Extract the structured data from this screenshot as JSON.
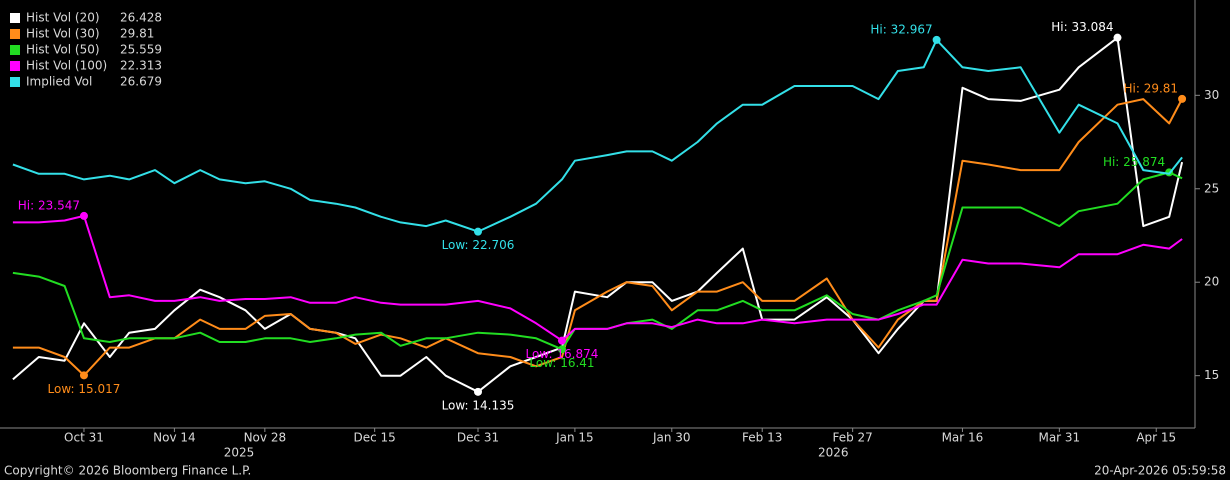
{
  "chart_data": {
    "type": "line",
    "x": [
      "2025-10-20",
      "2025-10-24",
      "2025-10-28",
      "2025-10-31",
      "2025-11-04",
      "2025-11-07",
      "2025-11-11",
      "2025-11-14",
      "2025-11-18",
      "2025-11-21",
      "2025-11-25",
      "2025-11-28",
      "2025-12-02",
      "2025-12-05",
      "2025-12-09",
      "2025-12-12",
      "2025-12-16",
      "2025-12-19",
      "2025-12-23",
      "2025-12-26",
      "2025-12-31",
      "2026-01-05",
      "2026-01-09",
      "2026-01-13",
      "2026-01-15",
      "2026-01-20",
      "2026-01-23",
      "2026-01-27",
      "2026-01-30",
      "2026-02-03",
      "2026-02-06",
      "2026-02-10",
      "2026-02-13",
      "2026-02-18",
      "2026-02-23",
      "2026-02-27",
      "2026-03-03",
      "2026-03-06",
      "2026-03-10",
      "2026-03-12",
      "2026-03-16",
      "2026-03-20",
      "2026-03-25",
      "2026-03-31",
      "2026-04-03",
      "2026-04-09",
      "2026-04-13",
      "2026-04-17",
      "2026-04-19"
    ],
    "series": [
      {
        "name": "Hist Vol (20)",
        "color": "#ffffff",
        "hi_label": "Hi: 33.084",
        "low_label": "Low: 14.135",
        "values": [
          14.8,
          16,
          15.8,
          17.8,
          16,
          17.3,
          17.5,
          18.5,
          19.6,
          19.2,
          18.5,
          17.5,
          18.3,
          17.5,
          17.3,
          17,
          15,
          15,
          16,
          15,
          14.135,
          15.5,
          16,
          16.5,
          19.5,
          19.2,
          20,
          20,
          19,
          19.5,
          20.5,
          21.8,
          18,
          18,
          19.2,
          18,
          16.2,
          17.5,
          19,
          19,
          30.4,
          29.8,
          29.7,
          30.3,
          31.5,
          33.084,
          23,
          23.5,
          26.428
        ]
      },
      {
        "name": "Hist Vol (30)",
        "color": "#ff8c1a",
        "hi_label": "Hi: 29.81",
        "low_label": "Low: 15.017",
        "values": [
          16.5,
          16.5,
          16,
          15.017,
          16.5,
          16.5,
          17,
          17,
          18,
          17.5,
          17.5,
          18.2,
          18.3,
          17.5,
          17.3,
          16.7,
          17.2,
          17,
          16.5,
          17,
          16.2,
          16,
          15.5,
          16,
          18.5,
          19.5,
          20,
          19.8,
          18.5,
          19.5,
          19.5,
          20,
          19,
          19,
          20.2,
          18,
          16.5,
          18,
          19,
          19,
          26.5,
          26.3,
          26,
          26,
          27.5,
          29.5,
          29.8,
          28.5,
          29.81
        ]
      },
      {
        "name": "Hist Vol (50)",
        "color": "#22dd22",
        "hi_label": "Hi: 25.874",
        "low_label": "Low: 16.41",
        "values": [
          20.5,
          20.3,
          19.8,
          17,
          16.8,
          17,
          17,
          17,
          17.3,
          16.8,
          16.8,
          17,
          17,
          16.8,
          17,
          17.2,
          17.3,
          16.6,
          17,
          17,
          17.3,
          17.2,
          17,
          16.41,
          17.5,
          17.5,
          17.8,
          18,
          17.5,
          18.5,
          18.5,
          19,
          18.5,
          18.5,
          19.3,
          18.3,
          18,
          18.5,
          19,
          19.3,
          24,
          24,
          24,
          23,
          23.8,
          24.2,
          25.5,
          25.874,
          25.559
        ]
      },
      {
        "name": "Hist Vol (100)",
        "color": "#ff00ff",
        "hi_label": "Hi: 23.547",
        "low_label": "Low: 16.874",
        "values": [
          23.2,
          23.2,
          23.3,
          23.547,
          19.2,
          19.3,
          19,
          19,
          19.2,
          19,
          19.1,
          19.1,
          19.2,
          18.9,
          18.9,
          19.2,
          18.9,
          18.8,
          18.8,
          18.8,
          19,
          18.6,
          17.8,
          16.874,
          17.5,
          17.5,
          17.8,
          17.8,
          17.6,
          18,
          17.8,
          17.8,
          18,
          17.8,
          18,
          18,
          18,
          18.3,
          18.8,
          18.8,
          21.2,
          21,
          21,
          20.8,
          21.5,
          21.5,
          22,
          21.8,
          22.313
        ]
      },
      {
        "name": "Implied Vol",
        "color": "#33e0e8",
        "hi_label": "Hi: 32.967",
        "low_label": "Low: 22.706",
        "values": [
          26.3,
          25.8,
          25.8,
          25.5,
          25.7,
          25.5,
          26,
          25.3,
          26,
          25.5,
          25.3,
          25.4,
          25,
          24.4,
          24.2,
          24,
          23.5,
          23.2,
          23,
          23.3,
          22.706,
          23.5,
          24.2,
          25.5,
          26.5,
          26.8,
          27,
          27,
          26.5,
          27.5,
          28.5,
          29.5,
          29.5,
          30.5,
          30.5,
          30.5,
          29.8,
          31.3,
          31.5,
          32.967,
          31.5,
          31.3,
          31.5,
          28,
          29.5,
          28.5,
          26,
          25.8,
          26.679
        ]
      }
    ],
    "xlim": [
      "2025-10-18",
      "2026-04-21"
    ],
    "xticks": [
      {
        "value": "2025-10-31",
        "label": "Oct 31"
      },
      {
        "value": "2025-11-14",
        "label": "Nov 14"
      },
      {
        "value": "2025-11-28",
        "label": "Nov 28"
      },
      {
        "value": "2025-12-15",
        "label": "Dec 15"
      },
      {
        "value": "2025-12-31",
        "label": "Dec 31"
      },
      {
        "value": "2026-01-15",
        "label": "Jan 15"
      },
      {
        "value": "2026-01-30",
        "label": "Jan 30"
      },
      {
        "value": "2026-02-13",
        "label": "Feb 13"
      },
      {
        "value": "2026-02-27",
        "label": "Feb 27"
      },
      {
        "value": "2026-03-16",
        "label": "Mar 16"
      },
      {
        "value": "2026-03-31",
        "label": "Mar 31"
      },
      {
        "value": "2026-04-15",
        "label": "Apr 15"
      }
    ],
    "year_ticks": [
      {
        "value": "2025-11-24",
        "label": "2025"
      },
      {
        "value": "2026-02-24",
        "label": "2026"
      }
    ],
    "ylim": [
      12.2,
      35.1
    ],
    "yticks": [
      15,
      20,
      25,
      30
    ],
    "grid": false,
    "legend": "top-left",
    "footer_left": "Copyright© 2026 Bloomberg Finance L.P.",
    "footer_right": "20-Apr-2026 05:59:58"
  }
}
